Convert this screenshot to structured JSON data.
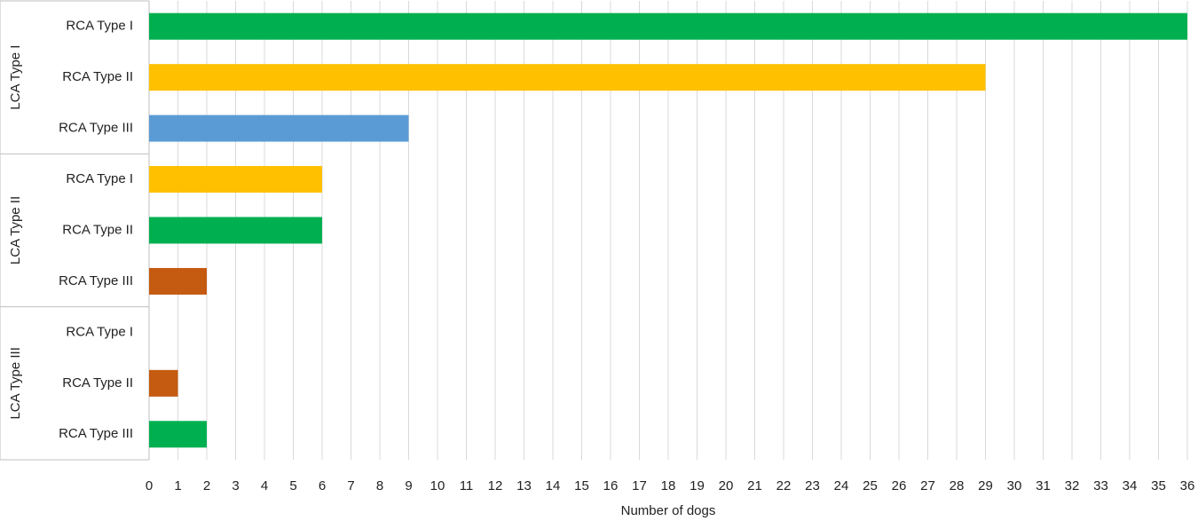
{
  "chart_data": {
    "type": "hbar",
    "xlabel": "Number of dogs",
    "groups": [
      {
        "name": "LCA Type I",
        "categories": [
          "RCA Type I",
          "RCA Type II",
          "RCA Type III"
        ],
        "values": [
          36,
          29,
          9
        ],
        "colors": [
          "#00b050",
          "#ffc000",
          "#5b9bd5"
        ]
      },
      {
        "name": "LCA Type II",
        "categories": [
          "RCA Type I",
          "RCA Type II",
          "RCA Type III"
        ],
        "values": [
          6,
          6,
          2
        ],
        "colors": [
          "#ffc000",
          "#00b050",
          "#c55a11"
        ]
      },
      {
        "name": "LCA Type III",
        "categories": [
          "RCA Type I",
          "RCA Type II",
          "RCA Type III"
        ],
        "values": [
          0,
          1,
          2
        ],
        "colors": [
          "#00b050",
          "#c55a11",
          "#00b050"
        ]
      }
    ],
    "xlim": [
      0,
      36
    ],
    "xticks": [
      0,
      1,
      2,
      3,
      4,
      5,
      6,
      7,
      8,
      9,
      10,
      11,
      12,
      13,
      14,
      15,
      16,
      17,
      18,
      19,
      20,
      21,
      22,
      23,
      24,
      25,
      26,
      27,
      28,
      29,
      30,
      31,
      32,
      33,
      34,
      35,
      36
    ],
    "grid": true
  }
}
